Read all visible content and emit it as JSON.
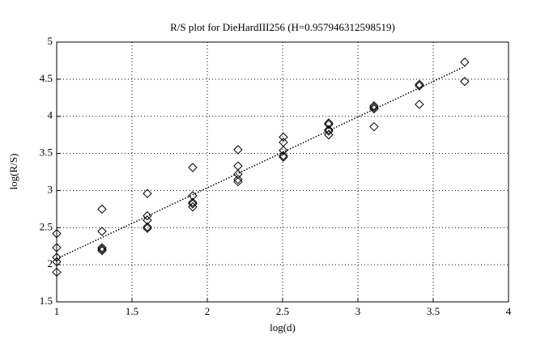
{
  "chart_data": {
    "type": "scatter",
    "title": "R/S plot for DieHardIII256 (H=0.957946312598519)",
    "xlabel": "log(d)",
    "ylabel": "log(R/S)",
    "xlim": [
      1,
      4
    ],
    "ylim": [
      1.5,
      5
    ],
    "xticks": [
      1,
      1.5,
      2,
      2.5,
      3,
      3.5,
      4
    ],
    "yticks": [
      1.5,
      2,
      2.5,
      3,
      3.5,
      4,
      4.5,
      5
    ],
    "grid": true,
    "series": [
      {
        "type": "scatter",
        "marker": "diamond",
        "color": "#000000",
        "x": [
          1,
          1,
          1,
          1,
          1,
          1.301,
          1.301,
          1.301,
          1.301,
          1.301,
          1.602,
          1.602,
          1.602,
          1.602,
          1.602,
          1.903,
          1.903,
          1.903,
          1.903,
          1.903,
          2.204,
          2.204,
          2.204,
          2.204,
          2.204,
          2.505,
          2.505,
          2.505,
          2.505,
          2.505,
          2.806,
          2.806,
          2.806,
          2.806,
          2.806,
          3.107,
          3.107,
          3.107,
          3.107,
          3.408,
          3.408,
          3.408,
          3.709,
          3.709
        ],
        "values": [
          2.42,
          2.23,
          2.1,
          2.04,
          1.9,
          2.75,
          2.45,
          2.23,
          2.21,
          2.19,
          2.96,
          2.66,
          2.6,
          2.51,
          2.49,
          3.31,
          2.93,
          2.84,
          2.82,
          2.78,
          3.55,
          3.33,
          3.22,
          3.15,
          3.12,
          3.72,
          3.65,
          3.54,
          3.47,
          3.45,
          3.91,
          3.89,
          3.82,
          3.8,
          3.75,
          4.14,
          4.12,
          4.1,
          3.86,
          4.43,
          4.41,
          4.16,
          4.73,
          4.47
        ]
      },
      {
        "type": "line",
        "style": "dotted",
        "color": "#000000",
        "x": [
          1,
          3.709
        ],
        "values": [
          2.08,
          4.67
        ]
      }
    ]
  }
}
